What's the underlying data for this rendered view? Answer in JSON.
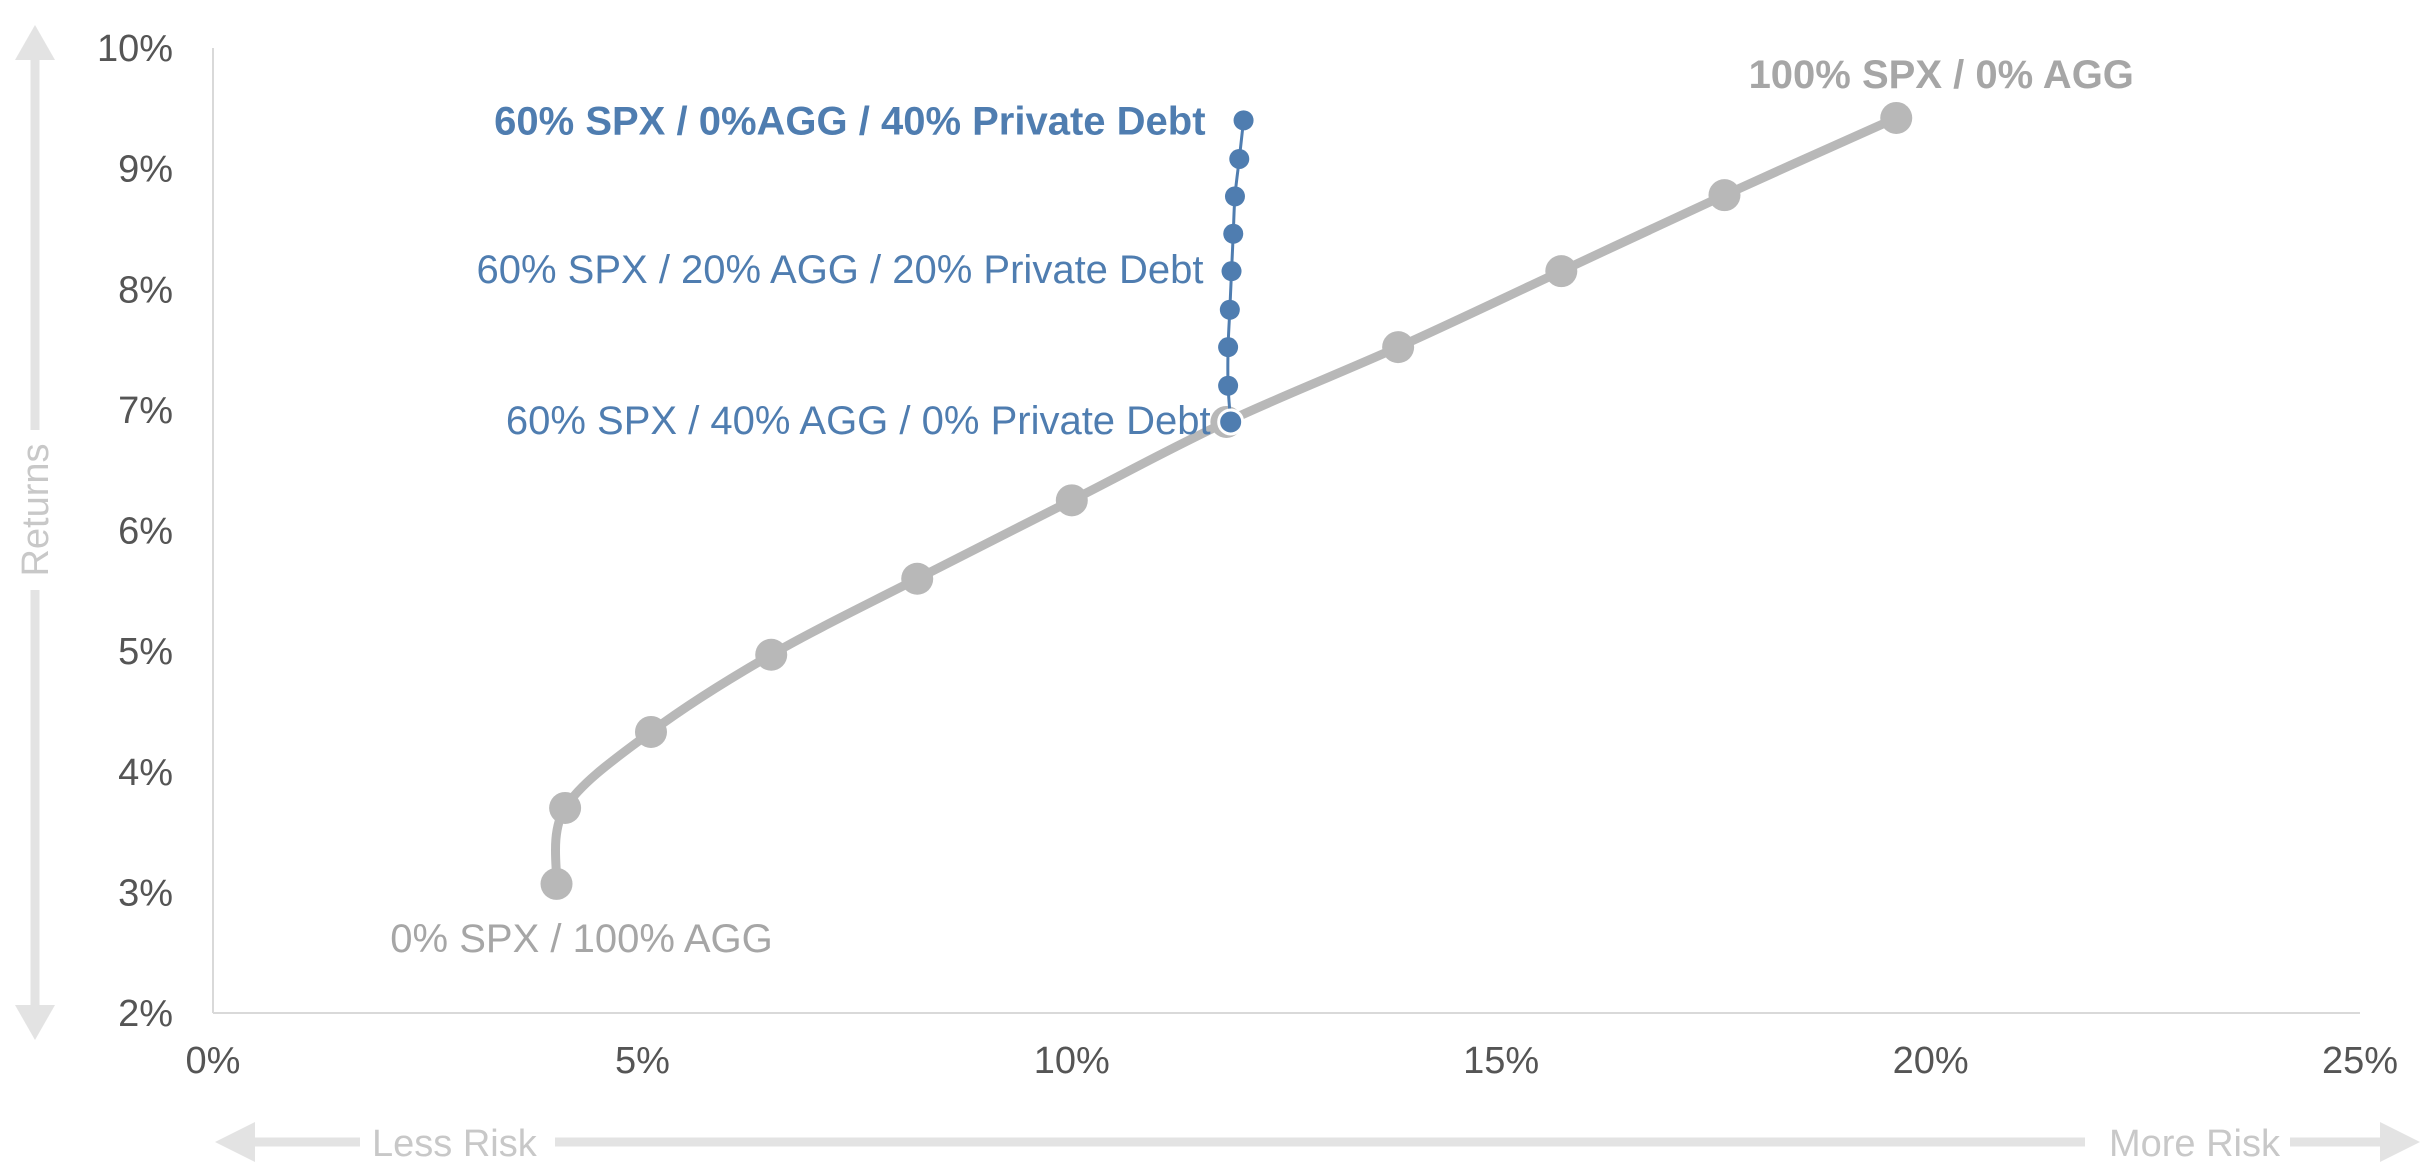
{
  "chart_data": {
    "type": "line",
    "title": "",
    "xlabel": "",
    "ylabel": "Returns",
    "xlim": [
      0,
      25
    ],
    "ylim": [
      2,
      10
    ],
    "x_ticks": [
      "0%",
      "5%",
      "10%",
      "15%",
      "20%",
      "25%"
    ],
    "y_ticks": [
      "2%",
      "3%",
      "4%",
      "5%",
      "6%",
      "7%",
      "8%",
      "9%",
      "10%"
    ],
    "grid": false,
    "axis_direction_labels": {
      "x_low": "Less Risk",
      "x_high": "More Risk"
    },
    "colors": {
      "frontier": "#b8b8b8",
      "private_debt": "#4f7db0",
      "axis_arrows": "#e3e3e3",
      "annotation_gray": "#a6a6a6"
    },
    "series": [
      {
        "x": [
          4.0,
          4.1,
          5.1,
          6.5,
          8.2,
          10.0,
          11.8,
          13.8,
          15.7,
          17.6,
          19.6
        ],
        "y": [
          3.07,
          3.7,
          4.33,
          4.97,
          5.6,
          6.25,
          6.9,
          7.52,
          8.15,
          8.78,
          9.42
        ]
      },
      {
        "x": [
          11.85,
          11.82,
          11.82,
          11.84,
          11.86,
          11.88,
          11.9,
          11.95,
          12.0
        ],
        "y": [
          6.9,
          7.2,
          7.52,
          7.83,
          8.15,
          8.46,
          8.77,
          9.08,
          9.4
        ]
      }
    ],
    "annotations": [
      {
        "text": "60% SPX / 0%AGG / 40% Private Debt",
        "x": 12.0,
        "y": 9.4,
        "color": "#4f7db0",
        "bold": true
      },
      {
        "text": "60% SPX / 20% AGG / 20% Private Debt",
        "x": 11.86,
        "y": 8.15,
        "color": "#4f7db0",
        "bold": false
      },
      {
        "text": "60% SPX / 40% AGG / 0% Private Debt",
        "x": 11.85,
        "y": 6.9,
        "color": "#4f7db0",
        "bold": false
      },
      {
        "text": "100% SPX / 0% AGG",
        "x": 19.6,
        "y": 9.42,
        "color": "#a6a6a6",
        "bold": true
      },
      {
        "text": "0% SPX / 100% AGG",
        "x": 4.0,
        "y": 3.07,
        "color": "#a6a6a6",
        "bold": false
      }
    ]
  }
}
